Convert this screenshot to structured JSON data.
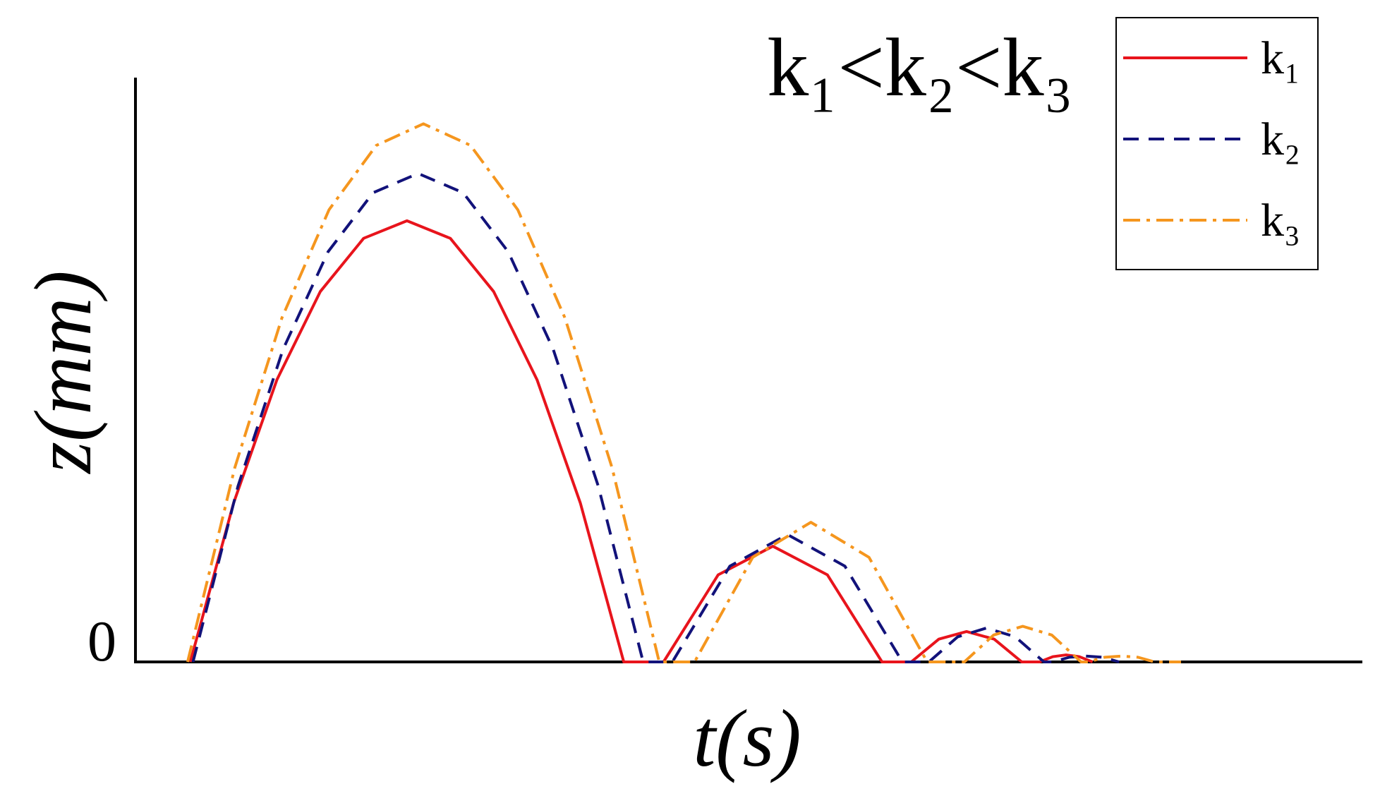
{
  "chart_data": {
    "type": "line",
    "title": "k₁<k₂<k₃",
    "x_label": "t(s)",
    "y_label": "z(mm)",
    "xlim": [
      0,
      100
    ],
    "ylim": [
      0,
      100
    ],
    "yticks": [
      0
    ],
    "series": [
      {
        "name": "k₁",
        "color": "#e8141c",
        "style": "solid",
        "x": [
          4.47,
          8.0,
          11.53,
          15.07,
          18.6,
          22.13,
          25.66,
          29.19,
          32.73,
          36.26,
          39.8,
          43.04,
          47.49,
          51.95,
          56.4,
          60.85,
          63.23,
          65.48,
          67.74,
          69.99,
          72.24,
          73.69,
          74.77,
          75.85,
          76.93,
          78.01
        ],
        "y": [
          0,
          27.2,
          48.3,
          63.4,
          72.5,
          75.5,
          72.5,
          63.4,
          48.3,
          27.2,
          0,
          0,
          14.9,
          19.8,
          14.9,
          0,
          0,
          3.9,
          5.2,
          3.9,
          0,
          0,
          0.9,
          1.2,
          0.9,
          0
        ]
      },
      {
        "name": "k₂",
        "color": "#12127a",
        "style": "dashed",
        "x": [
          4.69,
          8.36,
          12.03,
          15.7,
          19.37,
          23.04,
          26.71,
          30.38,
          34.05,
          37.72,
          41.38,
          43.76,
          48.45,
          53.14,
          57.82,
          62.51,
          64.67,
          67.02,
          69.36,
          71.71,
          74.05,
          74.77,
          76.12,
          77.47,
          78.82,
          80.17
        ],
        "y": [
          0,
          30.1,
          53.5,
          70.2,
          80.3,
          83.6,
          80.3,
          70.2,
          53.5,
          30.1,
          0,
          0,
          16.4,
          21.8,
          16.4,
          0,
          0,
          4.3,
          5.8,
          4.3,
          0,
          0,
          0.8,
          1.0,
          0.8,
          0
        ]
      },
      {
        "name": "k₃",
        "color": "#f5961e",
        "style": "dashdot",
        "x": [
          4.25,
          8.09,
          11.94,
          15.78,
          19.63,
          23.47,
          27.31,
          31.16,
          35.0,
          38.85,
          42.69,
          45.57,
          50.31,
          55.05,
          59.79,
          64.53,
          67.56,
          69.94,
          72.32,
          74.69,
          77.07,
          77.65,
          79.0,
          80.36,
          81.71,
          83.06,
          85.22
        ],
        "y": [
          0,
          33.2,
          58.9,
          77.4,
          88.4,
          92.1,
          88.4,
          77.4,
          58.9,
          33.2,
          0,
          0,
          17.9,
          23.9,
          17.9,
          0,
          0,
          4.6,
          6.1,
          4.6,
          0,
          0,
          0.8,
          1.0,
          0.8,
          0,
          0
        ]
      }
    ]
  }
}
